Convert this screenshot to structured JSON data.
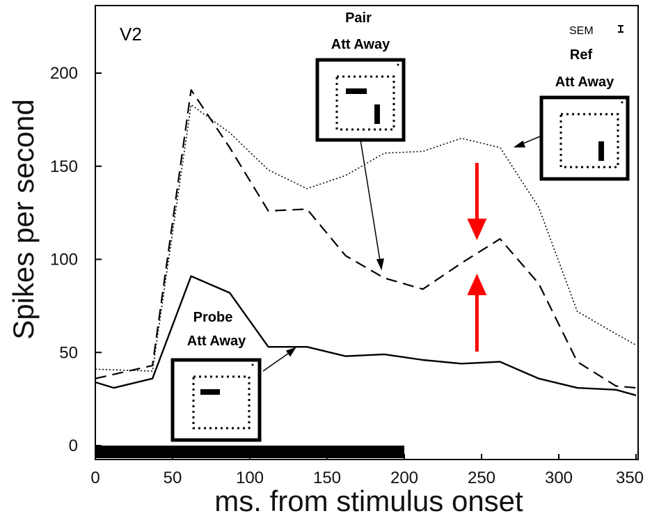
{
  "chart_data": {
    "type": "line",
    "panel_label": "V2",
    "xlabel": "ms. from stimulus onset",
    "ylabel": "Spikes per second",
    "xlim": [
      0,
      350
    ],
    "ylim": [
      0,
      235
    ],
    "xticks": [
      0,
      50,
      100,
      150,
      200,
      250,
      300,
      350
    ],
    "yticks": [
      0,
      50,
      100,
      150,
      200
    ],
    "grid": false,
    "stimulus_bar": [
      0,
      200
    ],
    "sem_label": "SEM",
    "series": [
      {
        "name": "Probe Att Away",
        "style": "solid",
        "x": [
          0,
          12,
          37,
          62,
          87,
          112,
          137,
          162,
          187,
          212,
          237,
          262,
          287,
          312,
          337,
          350
        ],
        "y": [
          34,
          31,
          36,
          91,
          82,
          53,
          53,
          48,
          49,
          46,
          44,
          45,
          36,
          31,
          30,
          27
        ]
      },
      {
        "name": "Pair Att Away",
        "style": "dashed",
        "x": [
          0,
          37,
          62,
          87,
          112,
          137,
          162,
          187,
          212,
          237,
          262,
          287,
          312,
          337,
          350
        ],
        "y": [
          36,
          43,
          191,
          160,
          126,
          127,
          102,
          90,
          84,
          98,
          111,
          87,
          45,
          32,
          31
        ]
      },
      {
        "name": "Ref Att Away",
        "style": "dotted",
        "x": [
          0,
          37,
          62,
          87,
          112,
          137,
          162,
          187,
          212,
          237,
          262,
          287,
          312,
          337,
          350
        ],
        "y": [
          41,
          40,
          183,
          168,
          148,
          138,
          145,
          157,
          158,
          165,
          160,
          128,
          72,
          60,
          54
        ]
      }
    ],
    "annotations": [
      {
        "lines": [
          "Probe",
          "Att Away"
        ],
        "series": "Probe Att Away"
      },
      {
        "lines": [
          "Pair",
          "Att Away"
        ],
        "series": "Pair Att Away"
      },
      {
        "lines": [
          "Ref",
          "Att Away"
        ],
        "series": "Ref Att Away"
      }
    ],
    "highlight_arrows_x": 247,
    "colors": {
      "line": "#000000",
      "highlight": "#ff0000"
    }
  }
}
